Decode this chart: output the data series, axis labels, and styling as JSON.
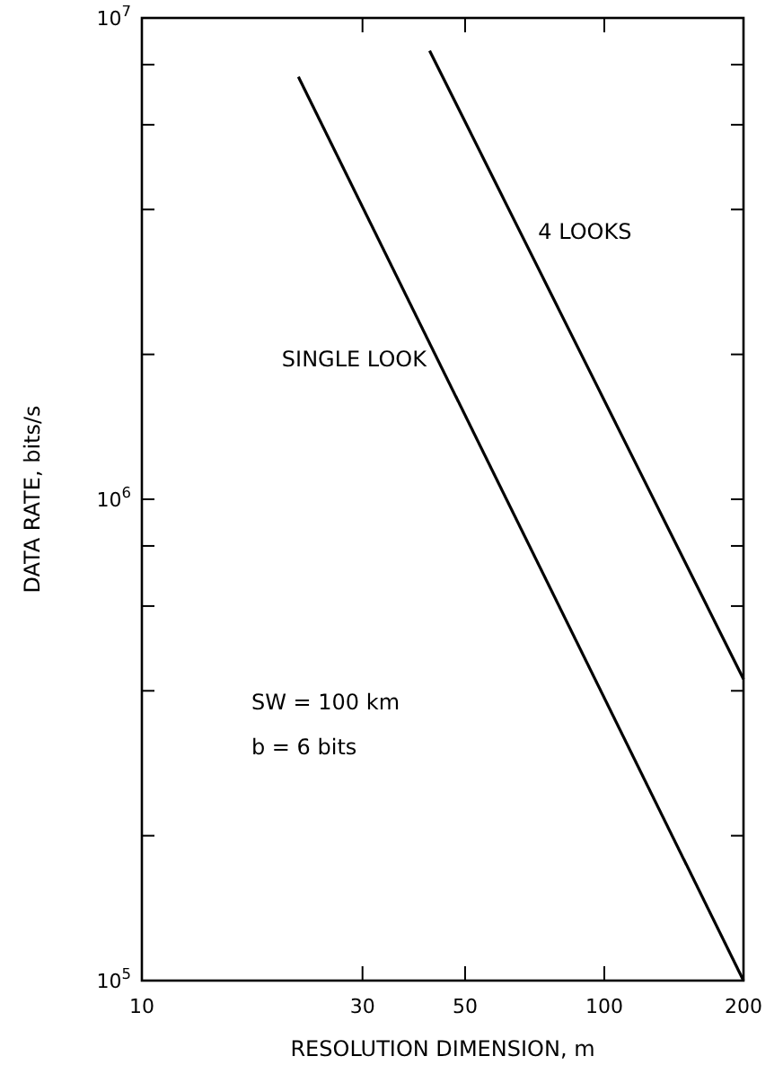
{
  "chart_data": {
    "type": "line",
    "xlabel": "RESOLUTION DIMENSION, m",
    "ylabel": "DATA RATE, bits/s",
    "log": "xy",
    "grid": false,
    "marker": "none",
    "line_style": "solid",
    "xlim": [
      10,
      200
    ],
    "xticks": [
      10,
      30,
      50,
      100,
      200
    ],
    "ylim": [
      100000,
      10000000
    ],
    "yticks": [
      {
        "value": 100000,
        "label": "10$^{5}$"
      },
      {
        "value": 200000,
        "label": null
      },
      {
        "value": 400000,
        "label": null
      },
      {
        "value": 600000,
        "label": null
      },
      {
        "value": 800000,
        "label": null
      },
      {
        "value": 1000000,
        "label": "10$^{6}$"
      },
      {
        "value": 2000000,
        "label": null
      },
      {
        "value": 4000000,
        "label": null
      },
      {
        "value": 6000000,
        "label": null
      },
      {
        "value": 8000000,
        "label": null
      },
      {
        "value": 10000000,
        "label": "10$^{7}$"
      }
    ],
    "series": [
      {
        "name": "SINGLE LOOK",
        "color": "#000000",
        "x": [
          21.8,
          200
        ],
        "values": [
          7550000,
          100000
        ]
      },
      {
        "name": "4 LOOKS",
        "color": "#000000",
        "x": [
          41.9,
          200
        ],
        "values": [
          8550000,
          423000
        ]
      }
    ],
    "annotations": [
      "SW = 100 km",
      "b = 6 bits"
    ]
  }
}
